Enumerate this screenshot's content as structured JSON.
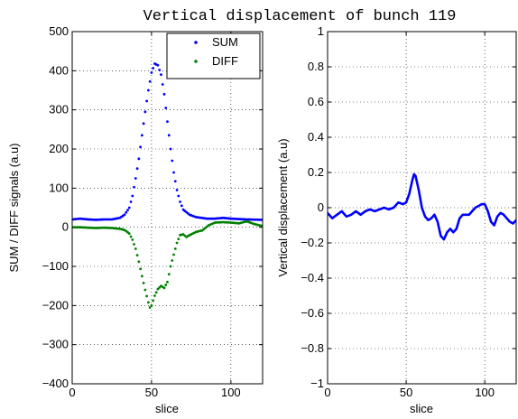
{
  "title": "Vertical displacement of bunch 119",
  "colors": {
    "sum": "#0000ff",
    "diff": "#008000",
    "disp": "#0000ff"
  },
  "chart_data": [
    {
      "type": "scatter",
      "xlabel": "slice",
      "ylabel": "SUM / DIFF signals (a.u)",
      "xlim": [
        0,
        120
      ],
      "ylim": [
        -400,
        500
      ],
      "xticks": [
        "0",
        "50",
        "100"
      ],
      "yticks": [
        "500",
        "400",
        "300",
        "200",
        "100",
        "0",
        "−100",
        "−200",
        "−300",
        "−400"
      ],
      "grid": true,
      "legend_position": "top-right",
      "series": [
        {
          "name": "SUM",
          "points": [
            [
              0,
              20
            ],
            [
              5,
              22
            ],
            [
              10,
              20
            ],
            [
              15,
              19
            ],
            [
              20,
              20
            ],
            [
              25,
              20
            ],
            [
              30,
              24
            ],
            [
              33,
              32
            ],
            [
              36,
              50
            ],
            [
              38,
              80
            ],
            [
              40,
              125
            ],
            [
              42,
              175
            ],
            [
              44,
              235
            ],
            [
              46,
              295
            ],
            [
              48,
              350
            ],
            [
              50,
              395
            ],
            [
              52,
              418
            ],
            [
              54,
              414
            ],
            [
              56,
              390
            ],
            [
              58,
              340
            ],
            [
              60,
              270
            ],
            [
              62,
              200
            ],
            [
              64,
              140
            ],
            [
              66,
              95
            ],
            [
              68,
              65
            ],
            [
              70,
              45
            ],
            [
              74,
              32
            ],
            [
              78,
              26
            ],
            [
              85,
              22
            ],
            [
              90,
              22
            ],
            [
              95,
              24
            ],
            [
              100,
              22
            ],
            [
              110,
              20
            ],
            [
              120,
              19
            ]
          ]
        },
        {
          "name": "DIFF",
          "points": [
            [
              0,
              0
            ],
            [
              5,
              0
            ],
            [
              10,
              -1
            ],
            [
              15,
              -2
            ],
            [
              20,
              -1
            ],
            [
              25,
              -2
            ],
            [
              30,
              -4
            ],
            [
              33,
              -7
            ],
            [
              36,
              -16
            ],
            [
              38,
              -32
            ],
            [
              40,
              -55
            ],
            [
              42,
              -88
            ],
            [
              44,
              -125
            ],
            [
              46,
              -160
            ],
            [
              48,
              -192
            ],
            [
              49,
              -205
            ],
            [
              50,
              -200
            ],
            [
              52,
              -175
            ],
            [
              54,
              -158
            ],
            [
              56,
              -150
            ],
            [
              58,
              -155
            ],
            [
              60,
              -140
            ],
            [
              62,
              -100
            ],
            [
              64,
              -70
            ],
            [
              66,
              -40
            ],
            [
              68,
              -20
            ],
            [
              70,
              -18
            ],
            [
              72,
              -25
            ],
            [
              74,
              -20
            ],
            [
              78,
              -12
            ],
            [
              82,
              -8
            ],
            [
              86,
              5
            ],
            [
              90,
              12
            ],
            [
              95,
              13
            ],
            [
              100,
              12
            ],
            [
              105,
              10
            ],
            [
              110,
              15
            ],
            [
              115,
              8
            ],
            [
              120,
              3
            ]
          ]
        }
      ]
    },
    {
      "type": "line",
      "xlabel": "slice",
      "ylabel": "Vertical displacement (a.u)",
      "xlim": [
        0,
        120
      ],
      "ylim": [
        -1,
        1
      ],
      "xticks": [
        "0",
        "50",
        "100"
      ],
      "yticks": [
        "1",
        "0.8",
        "0.6",
        "0.4",
        "0.2",
        "0",
        "−0.2",
        "−0.4",
        "−0.6",
        "−0.8",
        "−1"
      ],
      "grid": true,
      "series": [
        {
          "points": [
            [
              0,
              -0.03
            ],
            [
              3,
              -0.06
            ],
            [
              6,
              -0.04
            ],
            [
              9,
              -0.02
            ],
            [
              12,
              -0.05
            ],
            [
              15,
              -0.04
            ],
            [
              18,
              -0.02
            ],
            [
              21,
              -0.04
            ],
            [
              24,
              -0.02
            ],
            [
              27,
              -0.01
            ],
            [
              30,
              -0.02
            ],
            [
              33,
              -0.01
            ],
            [
              36,
              0.0
            ],
            [
              39,
              -0.01
            ],
            [
              42,
              0.0
            ],
            [
              45,
              0.03
            ],
            [
              48,
              0.02
            ],
            [
              50,
              0.03
            ],
            [
              52,
              0.08
            ],
            [
              54,
              0.16
            ],
            [
              55,
              0.19
            ],
            [
              56,
              0.18
            ],
            [
              58,
              0.1
            ],
            [
              60,
              0.0
            ],
            [
              62,
              -0.05
            ],
            [
              64,
              -0.07
            ],
            [
              66,
              -0.06
            ],
            [
              68,
              -0.04
            ],
            [
              70,
              -0.08
            ],
            [
              72,
              -0.16
            ],
            [
              74,
              -0.18
            ],
            [
              76,
              -0.14
            ],
            [
              78,
              -0.12
            ],
            [
              80,
              -0.14
            ],
            [
              82,
              -0.12
            ],
            [
              84,
              -0.06
            ],
            [
              86,
              -0.04
            ],
            [
              88,
              -0.04
            ],
            [
              90,
              -0.04
            ],
            [
              92,
              -0.02
            ],
            [
              94,
              0.0
            ],
            [
              96,
              0.01
            ],
            [
              98,
              0.02
            ],
            [
              100,
              0.02
            ],
            [
              102,
              -0.02
            ],
            [
              104,
              -0.08
            ],
            [
              106,
              -0.1
            ],
            [
              108,
              -0.05
            ],
            [
              110,
              -0.03
            ],
            [
              112,
              -0.04
            ],
            [
              114,
              -0.06
            ],
            [
              116,
              -0.08
            ],
            [
              118,
              -0.09
            ],
            [
              120,
              -0.07
            ]
          ]
        }
      ]
    }
  ]
}
